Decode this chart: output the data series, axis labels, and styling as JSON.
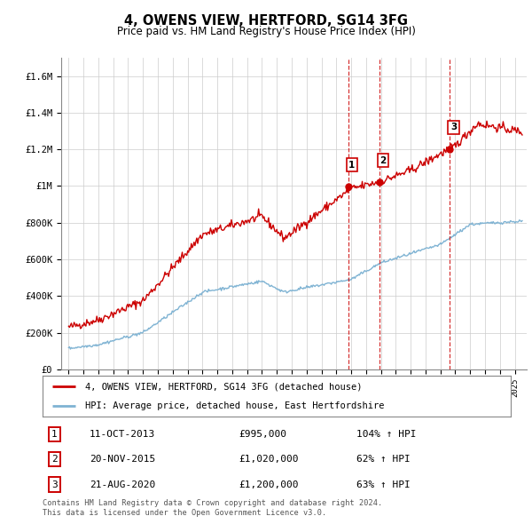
{
  "title": "4, OWENS VIEW, HERTFORD, SG14 3FG",
  "subtitle": "Price paid vs. HM Land Registry's House Price Index (HPI)",
  "ylim": [
    0,
    1700000
  ],
  "xlim_start": 1994.5,
  "xlim_end": 2025.8,
  "red_line_color": "#cc0000",
  "blue_line_color": "#7fb3d3",
  "vline_color": "#cc0000",
  "transactions": [
    {
      "num": 1,
      "date_label": "11-OCT-2013",
      "date_x": 2013.79,
      "price": 995000,
      "price_label": "£995,000",
      "pct_label": "104% ↑ HPI"
    },
    {
      "num": 2,
      "date_label": "20-NOV-2015",
      "date_x": 2015.89,
      "price": 1020000,
      "price_label": "£1,020,000",
      "pct_label": "62% ↑ HPI"
    },
    {
      "num": 3,
      "date_label": "21-AUG-2020",
      "date_x": 2020.64,
      "price": 1200000,
      "price_label": "£1,200,000",
      "pct_label": "63% ↑ HPI"
    }
  ],
  "legend_red_label": "4, OWENS VIEW, HERTFORD, SG14 3FG (detached house)",
  "legend_blue_label": "HPI: Average price, detached house, East Hertfordshire",
  "footer_line1": "Contains HM Land Registry data © Crown copyright and database right 2024.",
  "footer_line2": "This data is licensed under the Open Government Licence v3.0.",
  "ytick_labels": [
    "£0",
    "£200K",
    "£400K",
    "£600K",
    "£800K",
    "£1M",
    "£1.2M",
    "£1.4M",
    "£1.6M"
  ],
  "ytick_values": [
    0,
    200000,
    400000,
    600000,
    800000,
    1000000,
    1200000,
    1400000,
    1600000
  ],
  "background_color": "#ffffff",
  "plot_bg_color": "#ffffff",
  "grid_color": "#cccccc"
}
